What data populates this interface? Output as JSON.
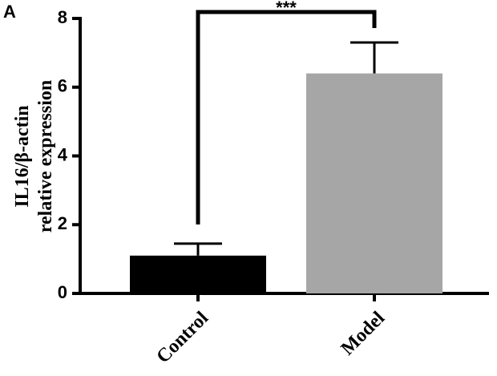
{
  "chart_data": {
    "type": "bar",
    "panel_label": "A",
    "ylabel": [
      "IL16/β-actin",
      "relative expression"
    ],
    "categories": [
      "Control",
      "Model"
    ],
    "values": [
      1.1,
      6.4
    ],
    "errors": [
      0.35,
      0.9
    ],
    "colors": [
      "#000000",
      "#a6a6a6"
    ],
    "ylim": [
      0,
      8
    ],
    "yticks": [
      0,
      2,
      4,
      6,
      8
    ],
    "annotation": "***"
  }
}
